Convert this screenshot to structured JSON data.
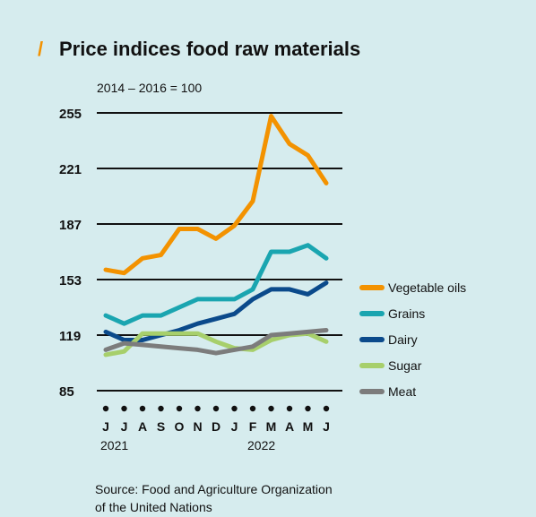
{
  "title_mark": "/",
  "title": "Price indices food raw materials",
  "subtitle": "2014 – 2016 = 100",
  "source_line1": "Source: Food and Agriculture Organization",
  "source_line2": "of the United Nations",
  "chart_data": {
    "type": "line",
    "title": "Price indices food raw materials",
    "subtitle": "2014 – 2016 = 100",
    "categories": [
      "J",
      "J",
      "A",
      "S",
      "O",
      "N",
      "D",
      "J",
      "F",
      "M",
      "A",
      "M",
      "J"
    ],
    "year_labels": [
      {
        "index": 0,
        "label": "2021"
      },
      {
        "index": 8,
        "label": "2022"
      }
    ],
    "yticks": [
      85,
      119,
      153,
      187,
      221,
      255
    ],
    "ylim": [
      85,
      255
    ],
    "grid": "horizontal",
    "legend_position": "right",
    "series": [
      {
        "name": "Vegetable oils",
        "color": "#f39200",
        "values": [
          159,
          157,
          166,
          168,
          184,
          184,
          178,
          186,
          201,
          253,
          236,
          229,
          212
        ]
      },
      {
        "name": "Grains",
        "color": "#1aa5b0",
        "values": [
          131,
          126,
          131,
          131,
          136,
          141,
          141,
          141,
          147,
          170,
          170,
          174,
          166
        ]
      },
      {
        "name": "Dairy",
        "color": "#0b4a8b",
        "values": [
          121,
          116,
          116,
          119,
          122,
          126,
          129,
          132,
          141,
          147,
          147,
          144,
          151
        ]
      },
      {
        "name": "Sugar",
        "color": "#a7cf6b",
        "values": [
          107,
          109,
          120,
          120,
          120,
          120,
          115,
          111,
          110,
          116,
          119,
          120,
          115
        ]
      },
      {
        "name": "Meat",
        "color": "#7c7c7c",
        "values": [
          110,
          114,
          113,
          112,
          111,
          110,
          108,
          110,
          112,
          119,
          120,
          121,
          122
        ]
      }
    ]
  }
}
